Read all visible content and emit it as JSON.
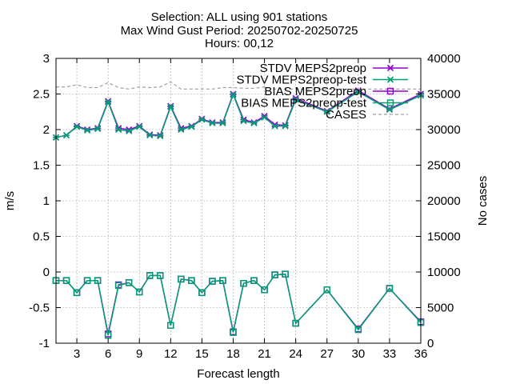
{
  "chart_data": {
    "type": "line",
    "title_lines": [
      "Selection: ALL using   901 stations",
      "Max Wind Gust   Period: 20250702-20250725",
      "Hours: 00,12"
    ],
    "xlabel": "Forecast length",
    "ylabel": "m/s",
    "y2label": "No cases",
    "xlim": [
      1,
      36
    ],
    "ylim": [
      -1,
      3
    ],
    "y2lim": [
      0,
      40000
    ],
    "xticks": [
      3,
      6,
      9,
      12,
      15,
      18,
      21,
      24,
      27,
      30,
      33,
      36
    ],
    "yticks": [
      -1,
      -0.5,
      0,
      0.5,
      1,
      1.5,
      2,
      2.5,
      3
    ],
    "yticklabels": [
      "-1",
      "-0.5",
      "0",
      "0.5",
      "1",
      "1.5",
      "2",
      "2.5",
      "3"
    ],
    "y2ticks": [
      0,
      5000,
      10000,
      15000,
      20000,
      25000,
      30000,
      35000,
      40000
    ],
    "grid": true,
    "legend_position": "top-right",
    "x": [
      1,
      2,
      3,
      4,
      5,
      6,
      7,
      8,
      9,
      10,
      11,
      12,
      13,
      14,
      15,
      16,
      17,
      18,
      19,
      20,
      21,
      22,
      23,
      24,
      27,
      30,
      33,
      36
    ],
    "series": [
      {
        "name": "STDV MEPS2preop",
        "axis": "y",
        "color": "#9400d3",
        "marker": "x",
        "values": [
          1.89,
          1.92,
          2.05,
          2.0,
          2.02,
          2.4,
          2.02,
          2.0,
          2.05,
          1.93,
          1.92,
          2.33,
          2.02,
          2.05,
          2.15,
          2.1,
          2.1,
          2.5,
          2.14,
          2.1,
          2.19,
          2.07,
          2.06,
          2.44,
          2.26,
          2.55,
          2.29,
          2.5
        ]
      },
      {
        "name": "STDV MEPS2preop-test",
        "axis": "y",
        "color": "#009e73",
        "marker": "x",
        "values": [
          1.89,
          1.92,
          2.04,
          1.99,
          2.01,
          2.39,
          2.0,
          1.98,
          2.04,
          1.92,
          1.91,
          2.32,
          2.0,
          2.04,
          2.14,
          2.09,
          2.09,
          2.49,
          2.12,
          2.09,
          2.17,
          2.05,
          2.05,
          2.42,
          2.25,
          2.53,
          2.28,
          2.48
        ]
      },
      {
        "name": "BIAS MEPS2preop",
        "axis": "y",
        "color": "#9400d3",
        "marker": "square",
        "values": [
          -0.12,
          -0.12,
          -0.29,
          -0.12,
          -0.12,
          -0.87,
          -0.18,
          -0.15,
          -0.28,
          -0.05,
          -0.05,
          -0.75,
          -0.1,
          -0.12,
          -0.29,
          -0.13,
          -0.12,
          -0.84,
          -0.16,
          -0.12,
          -0.25,
          -0.04,
          -0.03,
          -0.72,
          -0.25,
          -0.8,
          -0.23,
          -0.7
        ]
      },
      {
        "name": "BIAS MEPS2preop-test",
        "axis": "y",
        "color": "#009e73",
        "marker": "square",
        "values": [
          -0.12,
          -0.12,
          -0.29,
          -0.12,
          -0.12,
          -0.89,
          -0.19,
          -0.15,
          -0.28,
          -0.05,
          -0.05,
          -0.75,
          -0.1,
          -0.12,
          -0.29,
          -0.13,
          -0.12,
          -0.85,
          -0.16,
          -0.12,
          -0.25,
          -0.04,
          -0.03,
          -0.72,
          -0.25,
          -0.81,
          -0.23,
          -0.71
        ]
      },
      {
        "name": "CASES",
        "axis": "y2",
        "color": "#a0a0a0",
        "dashed": true,
        "marker": "none",
        "values": [
          36000,
          36000,
          36300,
          35900,
          35900,
          36600,
          35900,
          35700,
          36000,
          35900,
          36000,
          36700,
          35700,
          35700,
          35700,
          35700,
          35900,
          35900,
          35800,
          35800,
          36000,
          35700,
          35700,
          35700,
          35700,
          35700,
          35700,
          35700
        ]
      }
    ]
  }
}
